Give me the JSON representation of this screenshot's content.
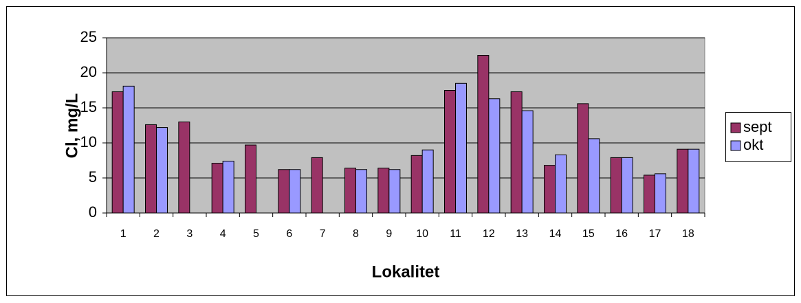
{
  "chart_data": {
    "type": "bar",
    "xlabel": "Lokalitet",
    "ylabel": "Cl, mg/L",
    "categories": [
      "1",
      "2",
      "3",
      "4",
      "5",
      "6",
      "7",
      "8",
      "9",
      "10",
      "11",
      "12",
      "13",
      "14",
      "15",
      "16",
      "17",
      "18"
    ],
    "series": [
      {
        "name": "sept",
        "color": "#993366",
        "values": [
          17.3,
          12.6,
          13.0,
          7.1,
          9.7,
          6.2,
          7.9,
          6.4,
          6.4,
          8.2,
          17.5,
          22.5,
          17.3,
          6.8,
          15.6,
          7.9,
          5.4,
          9.1
        ]
      },
      {
        "name": "okt",
        "color": "#9999ff",
        "values": [
          18.1,
          12.2,
          null,
          7.4,
          null,
          6.2,
          null,
          6.2,
          6.2,
          9.0,
          18.5,
          16.3,
          14.6,
          8.3,
          10.6,
          7.9,
          5.6,
          9.1
        ]
      }
    ],
    "ylim": [
      0,
      25
    ],
    "yticks": [
      0,
      5,
      10,
      15,
      20,
      25
    ],
    "grid": true,
    "legend": "right",
    "plot_background": "#c0c0c0"
  }
}
